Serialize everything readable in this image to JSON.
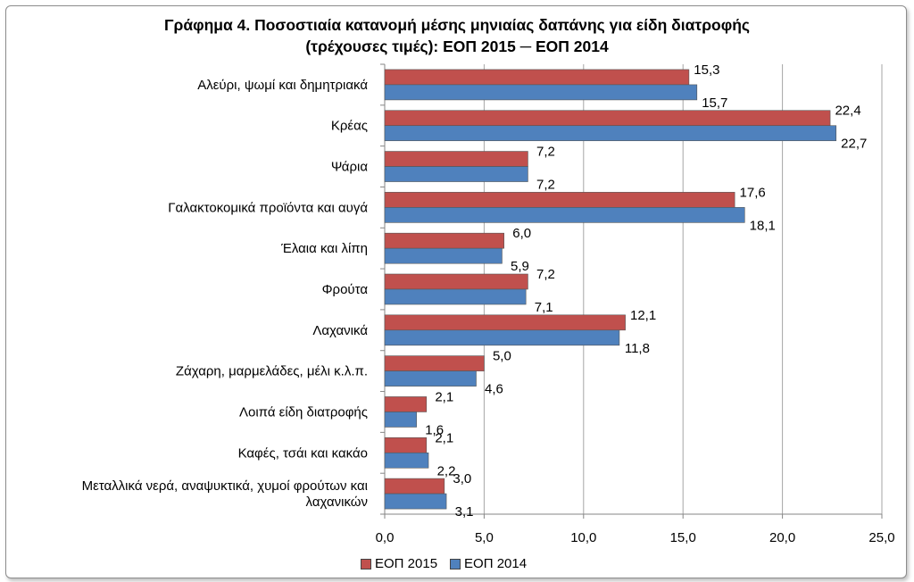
{
  "chart_data": {
    "type": "bar",
    "orientation": "horizontal",
    "title_line1": "Γράφημα 4.  Ποσοστιαία κατανομή μέσης μηνιαίας δαπάνης για είδη διατροφής",
    "title_line2": "(τρέχουσες τιμές): ΕΟΠ 2015 ─ ΕΟΠ 2014",
    "categories": [
      [
        "Αλεύρι, ψωμί και δημητριακά"
      ],
      [
        "Κρέας"
      ],
      [
        "Ψάρια"
      ],
      [
        "Γαλακτοκομικά προϊόντα και αυγά"
      ],
      [
        "Έλαια και λίπη"
      ],
      [
        "Φρούτα"
      ],
      [
        "Λαχανικά"
      ],
      [
        "Ζάχαρη, μαρμελάδες, μέλι κ.λ.π."
      ],
      [
        "Λοιπά είδη διατροφής"
      ],
      [
        "Καφές, τσάι και κακάο"
      ],
      [
        "Μεταλλικά νερά, αναψυκτικά, χυμοί φρούτων και",
        "λαχανικών"
      ]
    ],
    "series": [
      {
        "name": "ΕΟΠ 2015",
        "color": "#c0504d",
        "values": [
          15.3,
          22.4,
          7.2,
          17.6,
          6.0,
          7.2,
          12.1,
          5.0,
          2.1,
          2.1,
          3.0
        ],
        "labels": [
          "15,3",
          "22,4",
          "7,2",
          "17,6",
          "6,0",
          "7,2",
          "12,1",
          "5,0",
          "2,1",
          "2,1",
          "3,0"
        ]
      },
      {
        "name": "ΕΟΠ 2014",
        "color": "#4f81bd",
        "values": [
          15.7,
          22.7,
          7.2,
          18.1,
          5.9,
          7.1,
          11.8,
          4.6,
          1.6,
          2.2,
          3.1
        ],
        "labels": [
          "15,7",
          "22,7",
          "7,2",
          "18,1",
          "5,9",
          "7,1",
          "11,8",
          "4,6",
          "1,6",
          "2,2",
          "3,1"
        ]
      }
    ],
    "xlim": [
      0,
      25
    ],
    "xticks": [
      0,
      5,
      10,
      15,
      20,
      25
    ],
    "xtick_labels": [
      "0,0",
      "5,0",
      "10,0",
      "15,0",
      "20,0",
      "25,0"
    ],
    "grid": true,
    "legend_position": "bottom"
  }
}
